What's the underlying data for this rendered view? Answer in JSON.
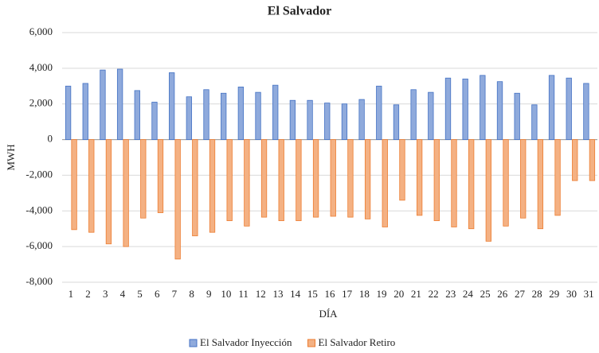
{
  "chart_data": {
    "type": "bar",
    "title": "El Salvador",
    "x_label": "DÍA",
    "y_label": "MWH",
    "categories": [
      "1",
      "2",
      "3",
      "4",
      "5",
      "6",
      "7",
      "8",
      "9",
      "10",
      "11",
      "12",
      "13",
      "14",
      "15",
      "16",
      "17",
      "18",
      "19",
      "20",
      "21",
      "22",
      "23",
      "24",
      "25",
      "26",
      "27",
      "28",
      "29",
      "30",
      "31"
    ],
    "series": [
      {
        "name": "El Salvador Inyección",
        "color": "#8faadc",
        "values": [
          3000,
          3150,
          3900,
          3950,
          2750,
          2100,
          3750,
          2400,
          2800,
          2600,
          2950,
          2650,
          3050,
          2200,
          2200,
          2050,
          2000,
          2250,
          3000,
          1950,
          2800,
          2650,
          3450,
          3400,
          3600,
          3250,
          2600,
          1950,
          3600,
          3450,
          3150
        ]
      },
      {
        "name": "El Salvador Retiro",
        "color": "#f4b183",
        "values": [
          -5050,
          -5200,
          -5850,
          -6000,
          -4400,
          -4100,
          -6700,
          -5400,
          -5200,
          -4550,
          -4850,
          -4350,
          -4550,
          -4550,
          -4350,
          -4300,
          -4350,
          -4450,
          -4900,
          -3400,
          -4250,
          -4550,
          -4900,
          -5000,
          -5700,
          -4850,
          -4400,
          -5000,
          -4250,
          -2300,
          -2300
        ]
      }
    ],
    "ylim": [
      -8000,
      6000
    ],
    "yticks": [
      {
        "value": -8000,
        "label": "-8,000"
      },
      {
        "value": -6000,
        "label": "-6,000"
      },
      {
        "value": -4000,
        "label": "-4,000"
      },
      {
        "value": -2000,
        "label": "-2,000"
      },
      0,
      {
        "value": 2000,
        "label": "2,000"
      },
      {
        "value": 4000,
        "label": "4,000"
      },
      {
        "value": 6000,
        "label": "6,000"
      }
    ],
    "grid": true,
    "legend": "bottom"
  }
}
